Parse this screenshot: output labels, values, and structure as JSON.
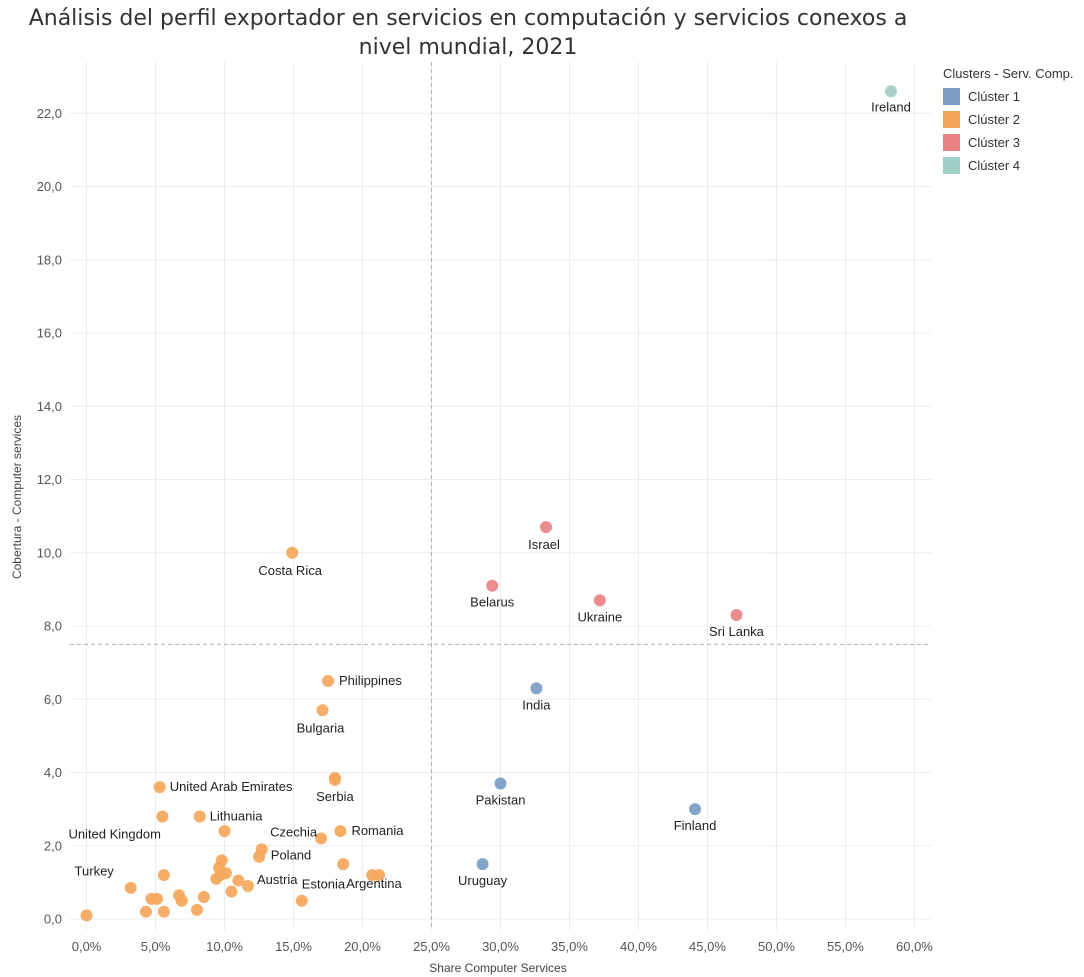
{
  "chart_data": {
    "type": "scatter",
    "title": "Análisis del perfil exportador en servicios en computación y servicios conexos a nivel mundial, 2021",
    "xlabel": "Share Computer Services",
    "ylabel": "Cobertura - Computer services",
    "xlim": [
      -0.012,
      0.612
    ],
    "ylim": [
      -0.3,
      23.4
    ],
    "x_ticks": [
      0,
      0.05,
      0.1,
      0.15,
      0.2,
      0.25,
      0.3,
      0.35,
      0.4,
      0.45,
      0.5,
      0.55,
      0.6
    ],
    "x_tick_labels": [
      "0,0%",
      "5,0%",
      "10,0%",
      "15,0%",
      "20,0%",
      "25,0%",
      "30,0%",
      "35,0%",
      "40,0%",
      "45,0%",
      "50,0%",
      "55,0%",
      "60,0%"
    ],
    "y_ticks": [
      0,
      2,
      4,
      6,
      8,
      10,
      12,
      14,
      16,
      18,
      20,
      22
    ],
    "y_tick_labels": [
      "0,0",
      "2,0",
      "4,0",
      "6,0",
      "8,0",
      "10,0",
      "12,0",
      "14,0",
      "16,0",
      "18,0",
      "20,0",
      "22,0"
    ],
    "reference_lines": {
      "x": 0.25,
      "y": 7.5
    },
    "grid": true,
    "legend": {
      "title": "Clusters - Serv. Comp.",
      "position": "top-right",
      "items": [
        {
          "name": "Clúster 1",
          "color": "#7b9cc4"
        },
        {
          "name": "Clúster 2",
          "color": "#f5a65b"
        },
        {
          "name": "Clúster 3",
          "color": "#ea8285"
        },
        {
          "name": "Clúster 4",
          "color": "#9fcfc7"
        }
      ]
    },
    "points": [
      {
        "label": "Ireland",
        "x": 0.583,
        "y": 22.6,
        "cluster": 4
      },
      {
        "label": "Israel",
        "x": 0.333,
        "y": 10.7,
        "cluster": 3
      },
      {
        "label": "Belarus",
        "x": 0.294,
        "y": 9.1,
        "cluster": 3
      },
      {
        "label": "Ukraine",
        "x": 0.372,
        "y": 8.7,
        "cluster": 3
      },
      {
        "label": "Sri Lanka",
        "x": 0.471,
        "y": 8.3,
        "cluster": 3
      },
      {
        "label": "India",
        "x": 0.326,
        "y": 6.3,
        "cluster": 1
      },
      {
        "label": "Pakistan",
        "x": 0.3,
        "y": 3.7,
        "cluster": 1
      },
      {
        "label": "Finland",
        "x": 0.441,
        "y": 3.0,
        "cluster": 1
      },
      {
        "label": "Uruguay",
        "x": 0.287,
        "y": 1.5,
        "cluster": 1
      },
      {
        "label": "Costa Rica",
        "x": 0.149,
        "y": 10.0,
        "cluster": 2
      },
      {
        "label": "Philippines",
        "x": 0.175,
        "y": 6.5,
        "cluster": 2
      },
      {
        "label": "Bulgaria",
        "x": 0.171,
        "y": 5.7,
        "cluster": 2
      },
      {
        "label": "Serbia",
        "x": 0.18,
        "y": 3.8,
        "cluster": 2
      },
      {
        "label": "United Arab Emirates",
        "x": 0.053,
        "y": 3.6,
        "cluster": 2
      },
      {
        "label": "Lithuania",
        "x": 0.082,
        "y": 2.8,
        "cluster": 2
      },
      {
        "label": "United Kingdom",
        "x": 0.055,
        "y": 2.8,
        "cluster": 2
      },
      {
        "label": "Czechia",
        "x": 0.17,
        "y": 2.2,
        "cluster": 2
      },
      {
        "label": "Romania",
        "x": 0.184,
        "y": 2.4,
        "cluster": 2
      },
      {
        "label": "Poland",
        "x": 0.127,
        "y": 1.9,
        "cluster": 2
      },
      {
        "label": "Turkey",
        "x": 0.0,
        "y": 0.1,
        "cluster": 2
      },
      {
        "label": "Austria",
        "x": 0.117,
        "y": 0.9,
        "cluster": 2
      },
      {
        "label": "Estonia",
        "x": 0.156,
        "y": 0.5,
        "cluster": 2
      },
      {
        "label": "Argentina",
        "x": 0.212,
        "y": 1.2,
        "cluster": 2
      },
      {
        "label": "",
        "x": 0.18,
        "y": 3.85,
        "cluster": 2
      },
      {
        "label": "",
        "x": 0.1,
        "y": 2.4,
        "cluster": 2
      },
      {
        "label": "",
        "x": 0.125,
        "y": 1.7,
        "cluster": 2
      },
      {
        "label": "",
        "x": 0.098,
        "y": 1.6,
        "cluster": 2
      },
      {
        "label": "",
        "x": 0.096,
        "y": 1.4,
        "cluster": 2
      },
      {
        "label": "",
        "x": 0.097,
        "y": 1.2,
        "cluster": 2
      },
      {
        "label": "",
        "x": 0.101,
        "y": 1.25,
        "cluster": 2
      },
      {
        "label": "",
        "x": 0.094,
        "y": 1.1,
        "cluster": 2
      },
      {
        "label": "",
        "x": 0.11,
        "y": 1.05,
        "cluster": 2
      },
      {
        "label": "",
        "x": 0.105,
        "y": 0.75,
        "cluster": 2
      },
      {
        "label": "",
        "x": 0.186,
        "y": 1.5,
        "cluster": 2
      },
      {
        "label": "",
        "x": 0.207,
        "y": 1.2,
        "cluster": 2
      },
      {
        "label": "",
        "x": 0.032,
        "y": 0.85,
        "cluster": 2
      },
      {
        "label": "",
        "x": 0.047,
        "y": 0.55,
        "cluster": 2
      },
      {
        "label": "",
        "x": 0.051,
        "y": 0.55,
        "cluster": 2
      },
      {
        "label": "",
        "x": 0.056,
        "y": 1.2,
        "cluster": 2
      },
      {
        "label": "",
        "x": 0.067,
        "y": 0.65,
        "cluster": 2
      },
      {
        "label": "",
        "x": 0.069,
        "y": 0.5,
        "cluster": 2
      },
      {
        "label": "",
        "x": 0.085,
        "y": 0.6,
        "cluster": 2
      },
      {
        "label": "",
        "x": 0.043,
        "y": 0.2,
        "cluster": 2
      },
      {
        "label": "",
        "x": 0.056,
        "y": 0.2,
        "cluster": 2
      },
      {
        "label": "",
        "x": 0.08,
        "y": 0.25,
        "cluster": 2
      }
    ]
  }
}
